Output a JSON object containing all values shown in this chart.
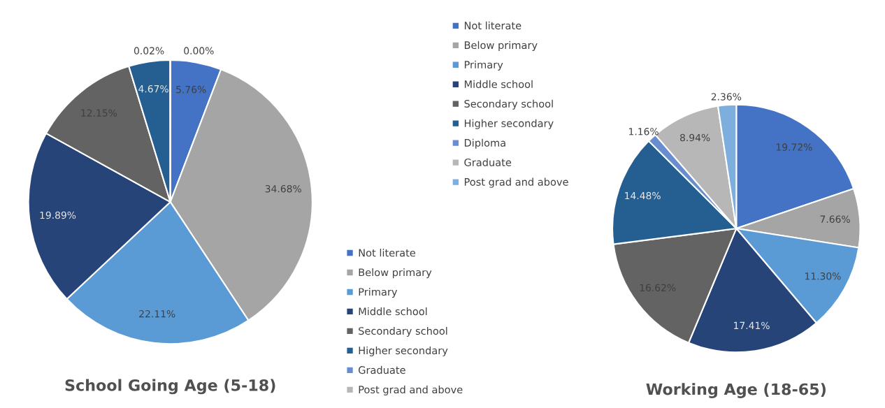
{
  "chart_data": [
    {
      "type": "pie",
      "title": "School Going Age (5-18)",
      "categories": [
        "Not literate",
        "Below primary",
        "Primary",
        "Middle school",
        "Secondary school",
        "Higher secondary",
        "Graduate",
        "Post grad and above"
      ],
      "values": [
        5.76,
        34.68,
        22.11,
        19.89,
        12.15,
        4.67,
        0.02,
        0.0
      ],
      "colors": [
        "#4472c4",
        "#a5a5a5",
        "#5b9bd5",
        "#264478",
        "#636363",
        "#255e91",
        "#698ed0",
        "#b7b7b7"
      ],
      "value_labels": [
        "5.76%",
        "34.68%",
        "22.11%",
        "19.89%",
        "12.15%",
        "4.67%",
        "0.02%",
        "0.00%"
      ],
      "legend": "bottom right"
    },
    {
      "type": "pie",
      "title": "Working Age (18-65)",
      "categories": [
        "Not literate",
        "Below primary",
        "Primary",
        "Middle school",
        "Secondary school",
        "Higher secondary",
        "Diploma",
        "Graduate",
        "Post grad and above"
      ],
      "values": [
        19.72,
        7.66,
        11.3,
        17.41,
        16.62,
        14.48,
        1.16,
        8.94,
        2.36
      ],
      "colors": [
        "#4472c4",
        "#a5a5a5",
        "#5b9bd5",
        "#264478",
        "#636363",
        "#255e91",
        "#698ed0",
        "#b7b7b7",
        "#7cafdd"
      ],
      "value_labels": [
        "19.72%",
        "7.66%",
        "11.30%",
        "17.41%",
        "16.62%",
        "14.48%",
        "1.16%",
        "8.94%",
        "2.36%"
      ],
      "legend": "top left"
    }
  ]
}
